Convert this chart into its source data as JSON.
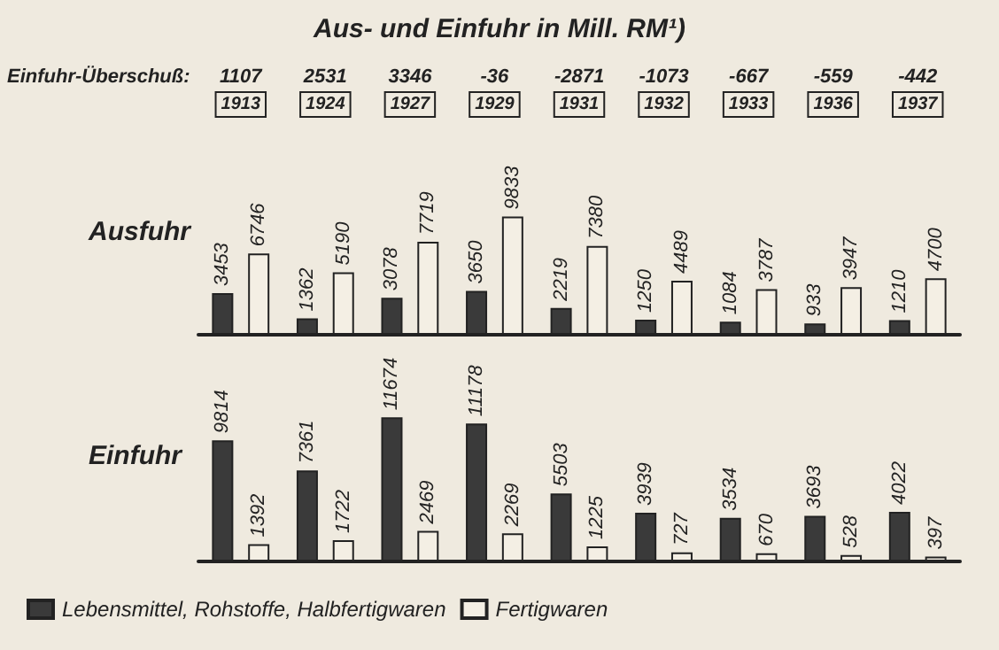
{
  "chart_data": [
    {
      "type": "bar",
      "title": "Aus- und Einfuhr in Mill. RM¹)",
      "ylabel": "Ausfuhr",
      "categories": [
        "1913",
        "1924",
        "1927",
        "1929",
        "1931",
        "1932",
        "1933",
        "1936",
        "1937"
      ],
      "series": [
        {
          "color": "#3a3a3a",
          "values": [
            3453,
            1362,
            3078,
            3650,
            2219,
            1250,
            1084,
            933,
            1210
          ]
        },
        {
          "color": "#f4efe4",
          "values": [
            6746,
            5190,
            7719,
            9833,
            7380,
            4489,
            3787,
            3947,
            4700
          ]
        }
      ],
      "annotations": [
        "Einfuhr-Überschuß:",
        "1107",
        "2531",
        "3346",
        "-36",
        "-2871",
        "-1073",
        "-667",
        "-559",
        "-442"
      ],
      "data_labels": true,
      "legend": false
    },
    {
      "type": "bar",
      "ylabel": "Einfuhr",
      "categories": [
        "1913",
        "1924",
        "1927",
        "1929",
        "1931",
        "1932",
        "1933",
        "1936",
        "1937"
      ],
      "tick_labels": false,
      "series": [
        {
          "name": "Lebensmittel, Rohstoffe, Halbfertigwaren",
          "color": "#3a3a3a",
          "values": [
            9814,
            7361,
            11674,
            11178,
            5503,
            3939,
            3534,
            3693,
            4022
          ]
        },
        {
          "name": "Fertigwaren",
          "color": "#f4efe4",
          "values": [
            1392,
            1722,
            2469,
            2269,
            1225,
            727,
            670,
            528,
            397
          ]
        }
      ],
      "data_labels": true,
      "legend": "bottom"
    }
  ]
}
